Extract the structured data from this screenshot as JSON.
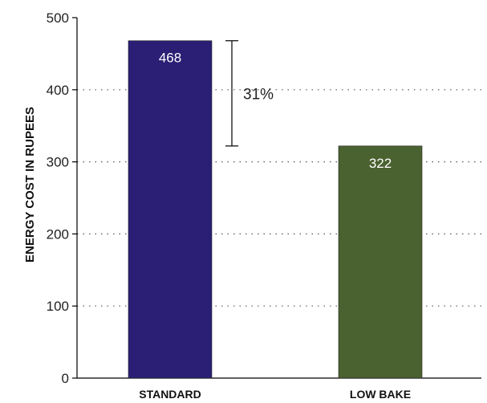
{
  "chart_data": {
    "type": "bar",
    "categories": [
      "STANDARD",
      "LOW BAKE"
    ],
    "values": [
      468,
      322
    ],
    "data_labels": [
      "468",
      "322"
    ],
    "bar_colors": [
      "#2a1f75",
      "#4a6130"
    ],
    "ylabel": "ENERGY COST IN RUPEES",
    "xlabel": "",
    "ylim": [
      0,
      500
    ],
    "yticks": [
      "0",
      "100",
      "200",
      "300",
      "400",
      "500"
    ],
    "grid": "dotted horizontal",
    "annotation": {
      "text": "31%",
      "from_value": 468,
      "to_value": 322
    }
  }
}
